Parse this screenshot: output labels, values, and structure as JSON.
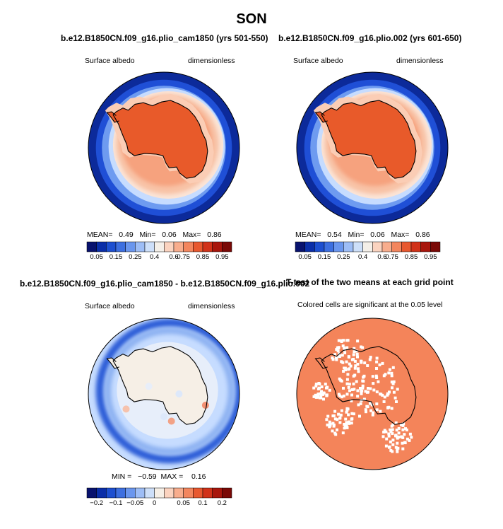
{
  "main_title": "SON",
  "colors": {
    "ocean_deep": "#0c2a9a",
    "blue_mid": "#3d6fe0",
    "blue_light": "#c6dcff",
    "neutral": "#f6efe6",
    "peach": "#f8c2a6",
    "orange": "#f4845a",
    "orange_dark": "#e85a2a",
    "coast": "#000000"
  },
  "chart_data": [
    {
      "type": "heatmap",
      "title": "b.e12.B1850CN.f09_g16.plio_cam1850 (yrs 501-550)",
      "variable": "Surface albedo",
      "units": "dimensionless",
      "stats": {
        "mean_label": "MEAN=",
        "mean": "0.49",
        "min_label": "Min=",
        "min": "0.06",
        "max_label": "Max=",
        "max": "0.86"
      },
      "colorbar_ticks": [
        "0.05",
        "0.15",
        "0.25",
        "0.4",
        "0.6",
        "0.75",
        "0.85",
        "0.95"
      ],
      "colorbar_colors": [
        "#08126e",
        "#0a2ea8",
        "#1d4fd0",
        "#3d6fe0",
        "#6a96ee",
        "#9dbdf6",
        "#cddff9",
        "#f4efe8",
        "#fbd3bf",
        "#f8ad8d",
        "#f3865e",
        "#e8582f",
        "#d13219",
        "#a8160c",
        "#7a0906"
      ]
    },
    {
      "type": "heatmap",
      "title": "b.e12.B1850CN.f09_g16.plio.002 (yrs 601-650)",
      "variable": "Surface albedo",
      "units": "dimensionless",
      "stats": {
        "mean_label": "MEAN=",
        "mean": "0.54",
        "min_label": "Min=",
        "min": "0.06",
        "max_label": "Max=",
        "max": "0.86"
      },
      "colorbar_ticks": [
        "0.05",
        "0.15",
        "0.25",
        "0.4",
        "0.6",
        "0.75",
        "0.85",
        "0.95"
      ],
      "colorbar_colors": [
        "#08126e",
        "#0a2ea8",
        "#1d4fd0",
        "#3d6fe0",
        "#6a96ee",
        "#9dbdf6",
        "#cddff9",
        "#f4efe8",
        "#fbd3bf",
        "#f8ad8d",
        "#f3865e",
        "#e8582f",
        "#d13219",
        "#a8160c",
        "#7a0906"
      ]
    },
    {
      "type": "heatmap",
      "title": "b.e12.B1850CN.f09_g16.plio_cam1850 - b.e12.B1850CN.f09_g16.plio.002",
      "variable": "Surface albedo",
      "units": "dimensionless",
      "stats": {
        "min_label": "MIN =",
        "min": "−0.59",
        "max_label": "MAX =",
        "max": "0.16"
      },
      "colorbar_ticks": [
        "−0.2",
        "−0.1",
        "−0.05",
        "0",
        "0.05",
        "0.1",
        "0.2"
      ],
      "colorbar_colors": [
        "#08126e",
        "#0a2ea8",
        "#1d4fd0",
        "#3d6fe0",
        "#6a96ee",
        "#9dbdf6",
        "#cddff9",
        "#f6efe6",
        "#fbd3bf",
        "#f8ad8d",
        "#f3865e",
        "#e8582f",
        "#d13219",
        "#a8160c",
        "#7a0906"
      ]
    },
    {
      "type": "heatmap",
      "title": "T-test of the two means at each grid point",
      "subtitle": "Colored cells are significant at the 0.05 level",
      "significant_color": "#f4845a"
    }
  ]
}
